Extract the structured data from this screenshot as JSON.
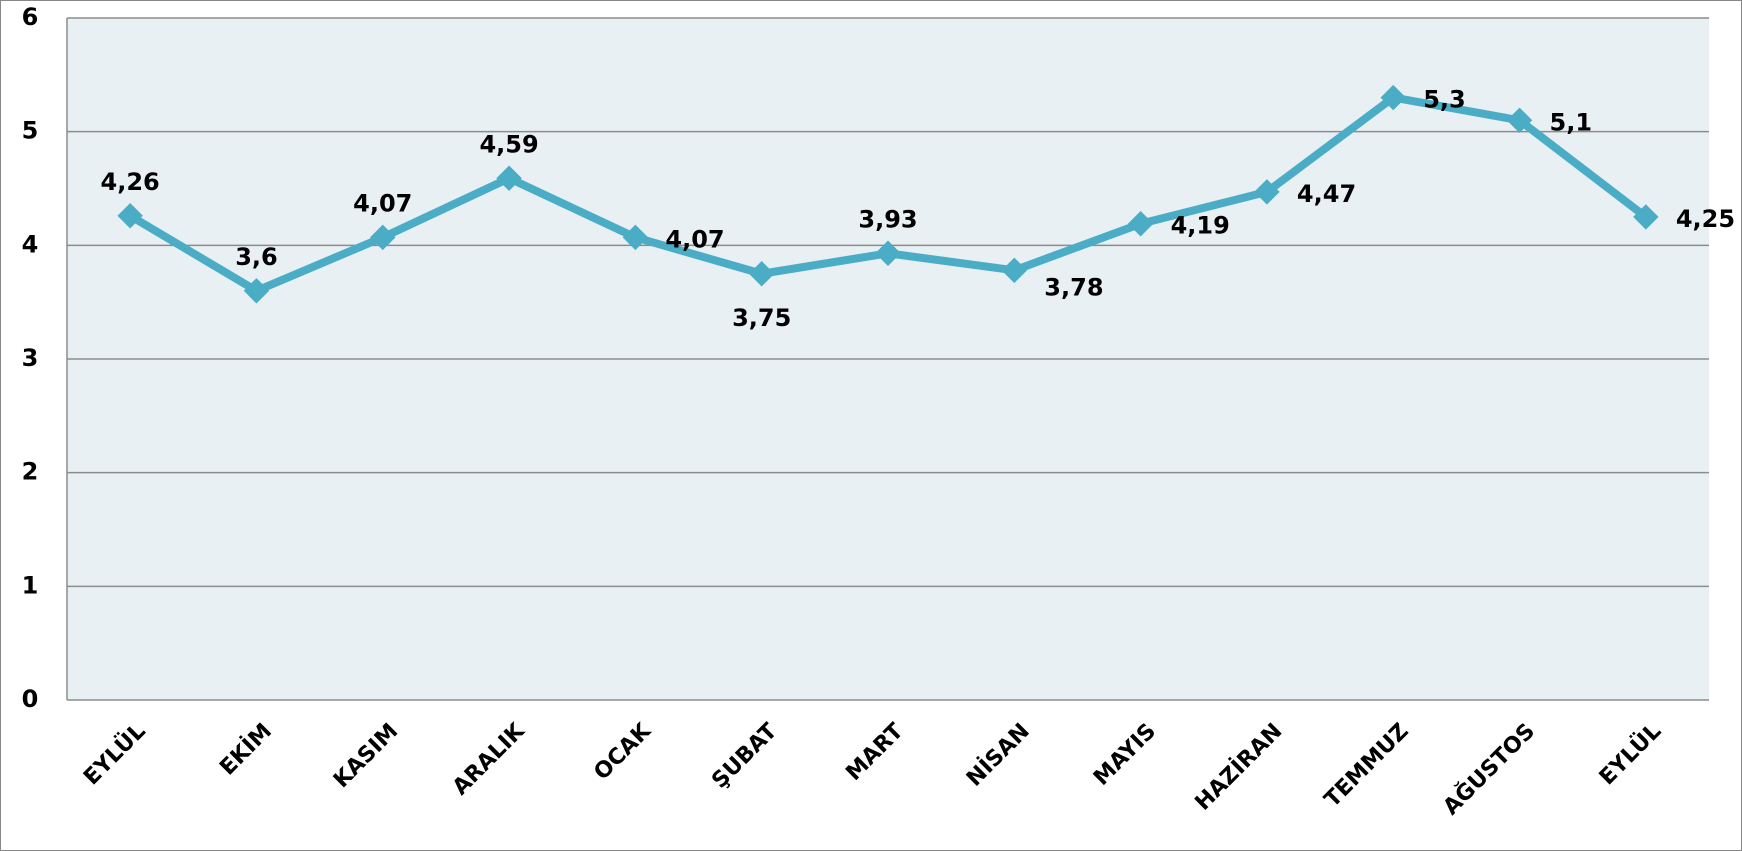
{
  "chart_data": {
    "type": "line",
    "categories": [
      "EYLÜL",
      "EKİM",
      "KASIM",
      "ARALIK",
      "OCAK",
      "ŞUBAT",
      "MART",
      "NİSAN",
      "MAYIS",
      "HAZİRAN",
      "TEMMUZ",
      "AĞUSTOS",
      "EYLÜL"
    ],
    "values": [
      4.26,
      3.6,
      4.07,
      4.59,
      4.07,
      3.75,
      3.93,
      3.78,
      4.19,
      4.47,
      5.3,
      5.1,
      4.25
    ],
    "value_labels": [
      "4,26",
      "3,6",
      "4,07",
      "4,59",
      "4,07",
      "3,75",
      "3,93",
      "3,78",
      "4,19",
      "4,47",
      "5,3",
      "5,1",
      "4,25"
    ],
    "color": "#4bacc6",
    "ylim": [
      0,
      6
    ],
    "yticks": [
      0,
      1,
      2,
      3,
      4,
      5,
      6
    ],
    "grid": true
  }
}
